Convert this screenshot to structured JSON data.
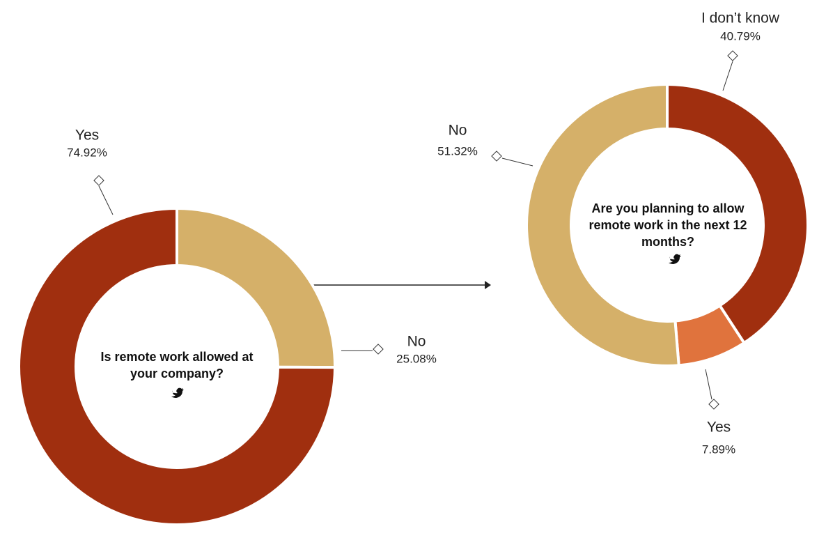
{
  "chart_data": [
    {
      "type": "donut",
      "title": "Is remote work allowed at your company?",
      "categories": [
        "No",
        "Yes"
      ],
      "values": [
        25.08,
        74.92
      ],
      "value_labels": [
        "25.08%",
        "74.92%"
      ],
      "colors": [
        "#d5b069",
        "#a02f0f"
      ]
    },
    {
      "type": "donut",
      "title": "Are you planning to allow remote work in the next 12 months?",
      "categories": [
        "I don’t know",
        "Yes",
        "No"
      ],
      "values": [
        40.79,
        7.89,
        51.32
      ],
      "value_labels": [
        "40.79%",
        "7.89%",
        "51.32%"
      ],
      "colors": [
        "#a02f0f",
        "#e0733d",
        "#d5b069"
      ]
    }
  ]
}
